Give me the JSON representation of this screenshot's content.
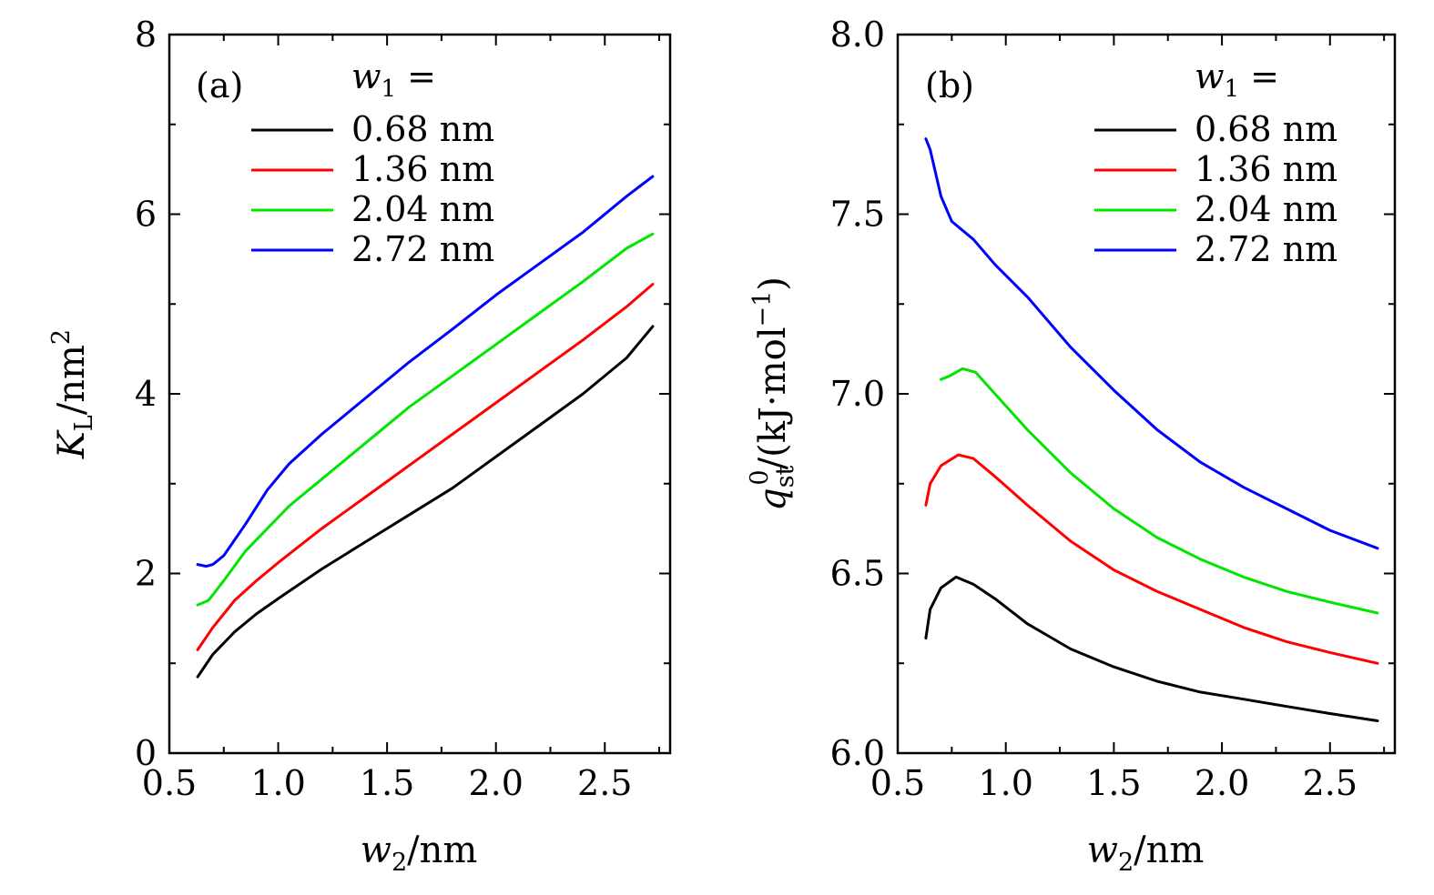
{
  "chart_data": [
    {
      "type": "line",
      "panel_label": "(a)",
      "xlabel_var": "w",
      "xlabel_sub": "2",
      "xlabel_unit": "/nm",
      "ylabel_var": "K",
      "ylabel_sub": "L",
      "ylabel_unit": "/nm",
      "ylabel_sup": "2",
      "xlim": [
        0.5,
        2.8
      ],
      "ylim": [
        0,
        8
      ],
      "xticks": [
        0.5,
        1.0,
        1.5,
        2.0,
        2.5
      ],
      "xtick_labels": [
        "0.5",
        "1.0",
        "1.5",
        "2.0",
        "2.5"
      ],
      "yticks": [
        0,
        2,
        4,
        6,
        8
      ],
      "ytick_labels": [
        "0",
        "2",
        "4",
        "6",
        "8"
      ],
      "legend": {
        "title_var": "w",
        "title_sub": "1",
        "title_suffix": " =",
        "position": "top-left"
      },
      "series": [
        {
          "name": "0.68 nm",
          "color": "#000000",
          "x": [
            0.63,
            0.7,
            0.8,
            0.9,
            1.0,
            1.2,
            1.4,
            1.6,
            1.8,
            2.0,
            2.2,
            2.4,
            2.6,
            2.72
          ],
          "y": [
            0.85,
            1.1,
            1.35,
            1.55,
            1.72,
            2.05,
            2.35,
            2.65,
            2.95,
            3.3,
            3.65,
            4.0,
            4.4,
            4.75
          ]
        },
        {
          "name": "1.36 nm",
          "color": "#ff0000",
          "x": [
            0.63,
            0.7,
            0.8,
            0.9,
            1.0,
            1.2,
            1.4,
            1.6,
            1.8,
            2.0,
            2.2,
            2.4,
            2.6,
            2.72
          ],
          "y": [
            1.15,
            1.4,
            1.7,
            1.92,
            2.12,
            2.5,
            2.85,
            3.2,
            3.55,
            3.9,
            4.25,
            4.6,
            4.97,
            5.22
          ]
        },
        {
          "name": "2.04 nm",
          "color": "#00e600",
          "x": [
            0.63,
            0.68,
            0.75,
            0.85,
            0.95,
            1.05,
            1.2,
            1.4,
            1.6,
            1.8,
            2.0,
            2.2,
            2.4,
            2.6,
            2.72
          ],
          "y": [
            1.65,
            1.7,
            1.92,
            2.25,
            2.5,
            2.75,
            3.05,
            3.45,
            3.85,
            4.2,
            4.55,
            4.9,
            5.25,
            5.62,
            5.78
          ]
        },
        {
          "name": "2.72 nm",
          "color": "#0000ff",
          "x": [
            0.63,
            0.67,
            0.7,
            0.75,
            0.85,
            0.95,
            1.05,
            1.2,
            1.4,
            1.6,
            1.8,
            2.0,
            2.2,
            2.4,
            2.6,
            2.72
          ],
          "y": [
            2.1,
            2.08,
            2.1,
            2.2,
            2.55,
            2.93,
            3.22,
            3.55,
            3.95,
            4.35,
            4.72,
            5.1,
            5.45,
            5.8,
            6.2,
            6.42
          ]
        }
      ]
    },
    {
      "type": "line",
      "panel_label": "(b)",
      "xlabel_var": "w",
      "xlabel_sub": "2",
      "xlabel_unit": "/nm",
      "ylabel_var": "q",
      "ylabel_sub": "st",
      "ylabel_sup": "0",
      "ylabel_unit": "/(kJ·mol",
      "ylabel_unit_sup": "−1",
      "ylabel_close": ")",
      "xlim": [
        0.5,
        2.8
      ],
      "ylim": [
        6.0,
        8.0
      ],
      "xticks": [
        0.5,
        1.0,
        1.5,
        2.0,
        2.5
      ],
      "xtick_labels": [
        "0.5",
        "1.0",
        "1.5",
        "2.0",
        "2.5"
      ],
      "yticks": [
        6.0,
        6.5,
        7.0,
        7.5,
        8.0
      ],
      "ytick_labels": [
        "6.0",
        "6.5",
        "7.0",
        "7.5",
        "8.0"
      ],
      "legend": {
        "title_var": "w",
        "title_sub": "1",
        "title_suffix": " =",
        "position": "top-right"
      },
      "series": [
        {
          "name": "0.68 nm",
          "color": "#000000",
          "x": [
            0.63,
            0.65,
            0.7,
            0.77,
            0.85,
            0.95,
            1.1,
            1.3,
            1.5,
            1.7,
            1.9,
            2.1,
            2.3,
            2.5,
            2.72
          ],
          "y": [
            6.32,
            6.4,
            6.46,
            6.49,
            6.47,
            6.43,
            6.36,
            6.29,
            6.24,
            6.2,
            6.17,
            6.15,
            6.13,
            6.11,
            6.09
          ]
        },
        {
          "name": "1.36 nm",
          "color": "#ff0000",
          "x": [
            0.63,
            0.65,
            0.7,
            0.78,
            0.85,
            0.95,
            1.1,
            1.3,
            1.5,
            1.7,
            1.9,
            2.1,
            2.3,
            2.5,
            2.72
          ],
          "y": [
            6.69,
            6.75,
            6.8,
            6.83,
            6.82,
            6.77,
            6.69,
            6.59,
            6.51,
            6.45,
            6.4,
            6.35,
            6.31,
            6.28,
            6.25
          ]
        },
        {
          "name": "2.04 nm",
          "color": "#00e600",
          "x": [
            0.7,
            0.74,
            0.8,
            0.86,
            0.95,
            1.1,
            1.3,
            1.5,
            1.7,
            1.9,
            2.1,
            2.3,
            2.5,
            2.72
          ],
          "y": [
            7.04,
            7.05,
            7.07,
            7.06,
            7.0,
            6.9,
            6.78,
            6.68,
            6.6,
            6.54,
            6.49,
            6.45,
            6.42,
            6.39
          ]
        },
        {
          "name": "2.72 nm",
          "color": "#0000ff",
          "x": [
            0.63,
            0.65,
            0.7,
            0.75,
            0.85,
            0.95,
            1.1,
            1.3,
            1.5,
            1.7,
            1.9,
            2.1,
            2.3,
            2.5,
            2.72
          ],
          "y": [
            7.71,
            7.68,
            7.55,
            7.48,
            7.43,
            7.36,
            7.27,
            7.13,
            7.01,
            6.9,
            6.81,
            6.74,
            6.68,
            6.62,
            6.57
          ]
        }
      ]
    }
  ]
}
